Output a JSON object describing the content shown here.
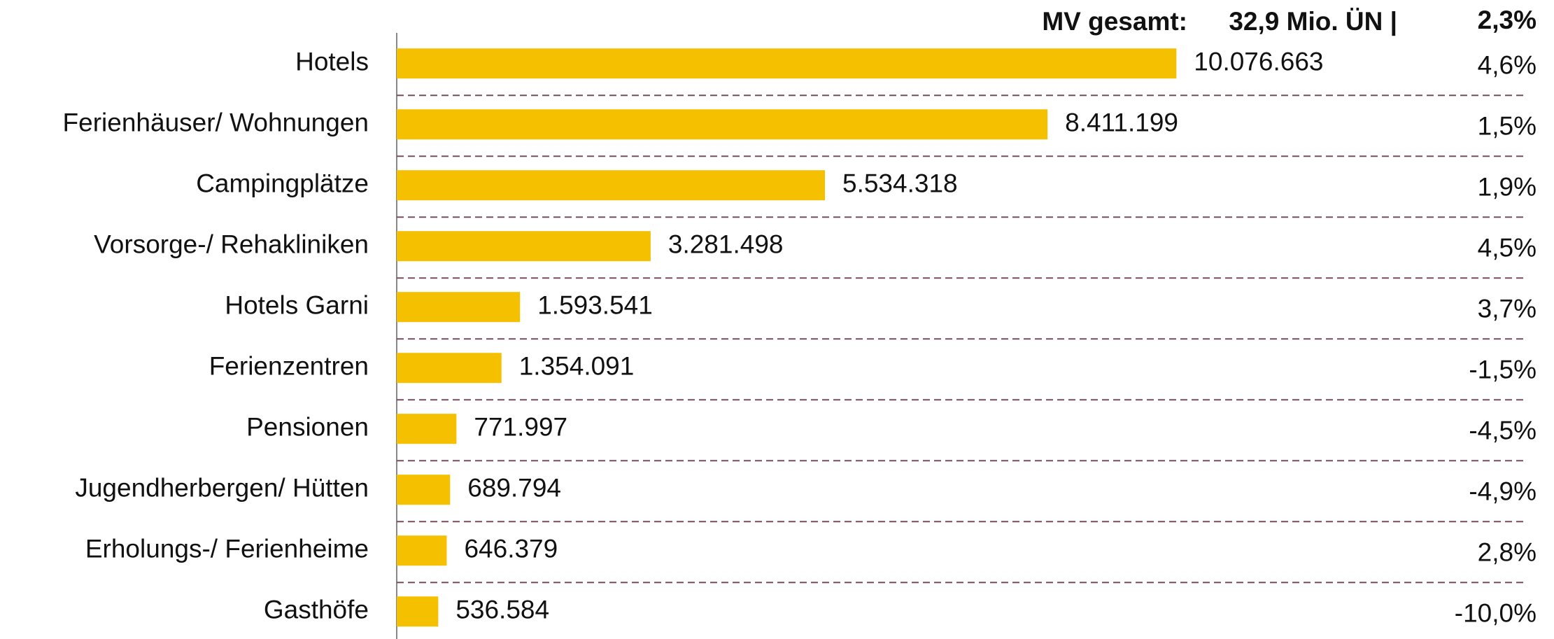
{
  "chart_data": {
    "type": "bar",
    "orientation": "horizontal",
    "total_label": "MV gesamt:",
    "total": "32,9 Mio. ÜN |",
    "total_change": "2,3%",
    "categories": [
      "Hotels",
      "Ferienhäuser/ Wohnungen",
      "Campingplätze",
      "Vorsorge-/ Rehakliniken",
      "Hotels Garni",
      "Ferienzentren",
      "Pensionen",
      "Jugendherbergen/ Hütten",
      "Erholungs-/ Ferienheime",
      "Gasthöfe"
    ],
    "values": [
      10076663,
      8411199,
      5534318,
      3281498,
      1593541,
      1354091,
      771997,
      689794,
      646379,
      536584
    ],
    "value_labels": [
      "10.076.663",
      "8.411.199",
      "5.534.318",
      "3.281.498",
      "1.593.541",
      "1.354.091",
      "771.997",
      "689.794",
      "646.379",
      "536.584"
    ],
    "changes": [
      4.6,
      1.5,
      1.9,
      4.5,
      3.7,
      -1.5,
      -4.5,
      -4.9,
      2.8,
      -10.0
    ],
    "change_labels": [
      "4,6%",
      "1,5%",
      "1,9%",
      "4,5%",
      "3,7%",
      "-1,5%",
      "-4,5%",
      "-4,9%",
      "2,8%",
      "-10,0%"
    ],
    "color": "#f5c000",
    "xlim": [
      0,
      12000000
    ]
  }
}
